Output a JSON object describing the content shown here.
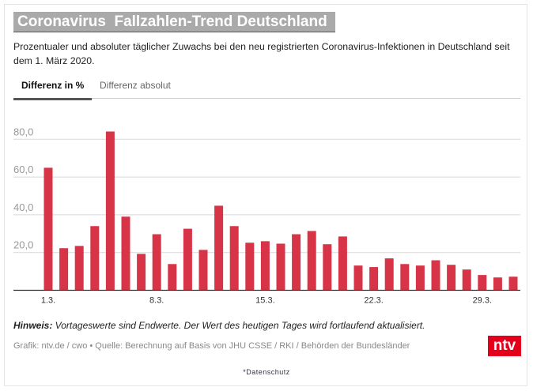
{
  "title": "Coronavirus  Fallzahlen-Trend Deutschland",
  "subtitle": "Prozentualer und absoluter täglicher Zuwachs bei den neu registrierten Coronavirus-Infektionen in Deutschland seit dem 1. März 2020.",
  "tabs": [
    {
      "label": "Differenz in %",
      "active": true
    },
    {
      "label": "Differenz absolut",
      "active": false
    }
  ],
  "chart_data": {
    "type": "bar",
    "categories": [
      "1.3.",
      "2.3.",
      "3.3.",
      "4.3.",
      "5.3.",
      "6.3.",
      "7.3.",
      "8.3.",
      "9.3.",
      "10.3.",
      "11.3.",
      "12.3.",
      "13.3.",
      "14.3.",
      "15.3.",
      "16.3.",
      "17.3.",
      "18.3.",
      "19.3.",
      "20.3.",
      "21.3.",
      "22.3.",
      "23.3.",
      "24.3.",
      "25.3.",
      "26.3.",
      "27.3.",
      "28.3.",
      "29.3.",
      "30.3.",
      "31.3."
    ],
    "values": [
      64.9,
      22.3,
      23.5,
      34.0,
      84.1,
      39.0,
      19.3,
      29.7,
      13.9,
      32.6,
      21.4,
      44.8,
      34.0,
      25.2,
      26.0,
      24.7,
      29.7,
      31.4,
      24.4,
      28.5,
      13.1,
      12.3,
      16.9,
      13.9,
      13.1,
      15.9,
      13.5,
      11.0,
      8.1,
      6.8,
      7.2
    ],
    "x_tick_labels": [
      "1.3.",
      "8.3.",
      "15.3.",
      "22.3.",
      "29.3."
    ],
    "y_tick_labels": [
      "20,0",
      "40,0",
      "60,0",
      "80,0"
    ],
    "y_ticks": [
      20,
      40,
      60,
      80
    ],
    "ylim": [
      0,
      100
    ],
    "grid": true,
    "bar_color": "#d73447"
  },
  "note_label": "Hinweis:",
  "note_text": " Vortageswerte sind Endwerte. Der Wert des heutigen Tages wird fortlaufend aktualisiert.",
  "source": "Grafik: ntv.de / cwo • Quelle: Berechnung auf Basis von JHU CSSE / RKI / Behörden der Bundesländer",
  "logo": "ntv",
  "privacy_link": "*Datenschutz"
}
